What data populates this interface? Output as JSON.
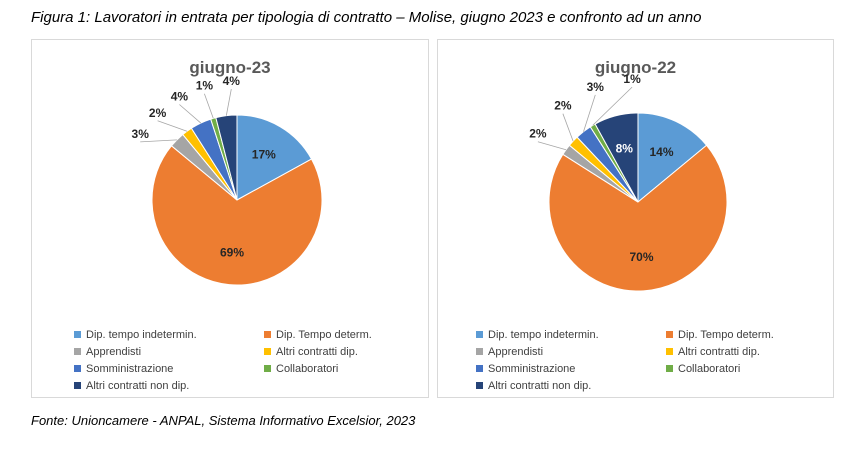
{
  "figure": {
    "title": "Figura 1: Lavoratori in entrata per tipologia di contratto – Molise, giugno 2023 e confronto ad un anno",
    "source": "Fonte: Unioncamere - ANPAL, Sistema Informativo Excelsior, 2023"
  },
  "chart_data": [
    {
      "type": "pie",
      "title": "giugno-23",
      "categories": [
        "Dip. tempo indetermin.",
        "Dip. Tempo determ.",
        "Apprendisti",
        "Altri contratti dip.",
        "Somministrazione",
        "Collaboratori",
        "Altri contratti non dip."
      ],
      "values": [
        17,
        69,
        3,
        2,
        4,
        1,
        4
      ],
      "labels": [
        "17%",
        "69%",
        "3%",
        "2%",
        "4%",
        "1%",
        "4%"
      ],
      "colors": [
        "#5b9bd5",
        "#ed7d31",
        "#a5a5a5",
        "#ffc000",
        "#4472c4",
        "#70ad47",
        "#264478"
      ],
      "legend": "bottom"
    },
    {
      "type": "pie",
      "title": "giugno-22",
      "categories": [
        "Dip. tempo indetermin.",
        "Dip. Tempo determ.",
        "Apprendisti",
        "Altri contratti dip.",
        "Somministrazione",
        "Collaboratori",
        "Altri contratti non dip."
      ],
      "values": [
        14,
        70,
        2,
        2,
        3,
        1,
        8
      ],
      "labels": [
        "14%",
        "70%",
        "2%",
        "2%",
        "3%",
        "1%",
        "8%"
      ],
      "colors": [
        "#5b9bd5",
        "#ed7d31",
        "#a5a5a5",
        "#ffc000",
        "#4472c4",
        "#70ad47",
        "#264478"
      ],
      "legend": "bottom"
    }
  ]
}
